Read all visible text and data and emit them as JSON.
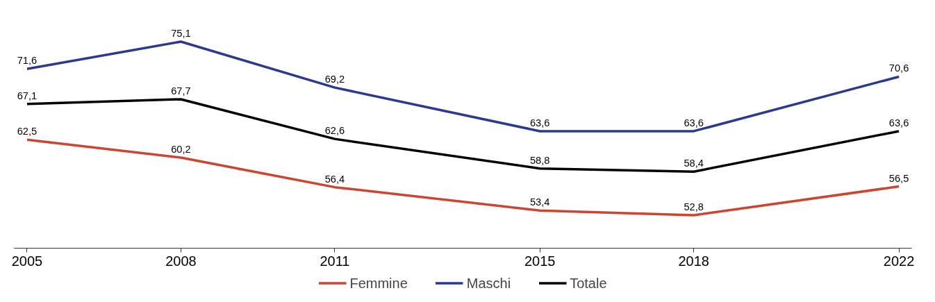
{
  "chart_data": {
    "type": "line",
    "x": [
      2005,
      2008,
      2011,
      2015,
      2018,
      2022
    ],
    "xlim": [
      2004.75,
      2022.25
    ],
    "xticks": [
      2005,
      2008,
      2011,
      2015,
      2018,
      2022
    ],
    "tick_labels": "x",
    "legend": "bottom",
    "line_style": "solid",
    "series": [
      {
        "name": "Femmine",
        "color": "#cf4431",
        "values": [
          62.5,
          60.2,
          56.4,
          53.4,
          52.8,
          56.5
        ],
        "value_labels": [
          "62,5",
          "60,2",
          "56,4",
          "53,4",
          "52,8",
          "56,5"
        ]
      },
      {
        "name": "Maschi",
        "color": "#2b3990",
        "values": [
          71.6,
          75.1,
          69.2,
          63.6,
          63.6,
          70.6
        ],
        "value_labels": [
          "71,6",
          "75,1",
          "69,2",
          "63,6",
          "63,6",
          "70,6"
        ]
      },
      {
        "name": "Totale",
        "color": "#000000",
        "values": [
          67.1,
          67.7,
          62.6,
          58.8,
          58.4,
          63.6
        ],
        "value_labels": [
          "67,1",
          "67,7",
          "62,6",
          "58,8",
          "58,4",
          "63,6"
        ]
      }
    ]
  }
}
